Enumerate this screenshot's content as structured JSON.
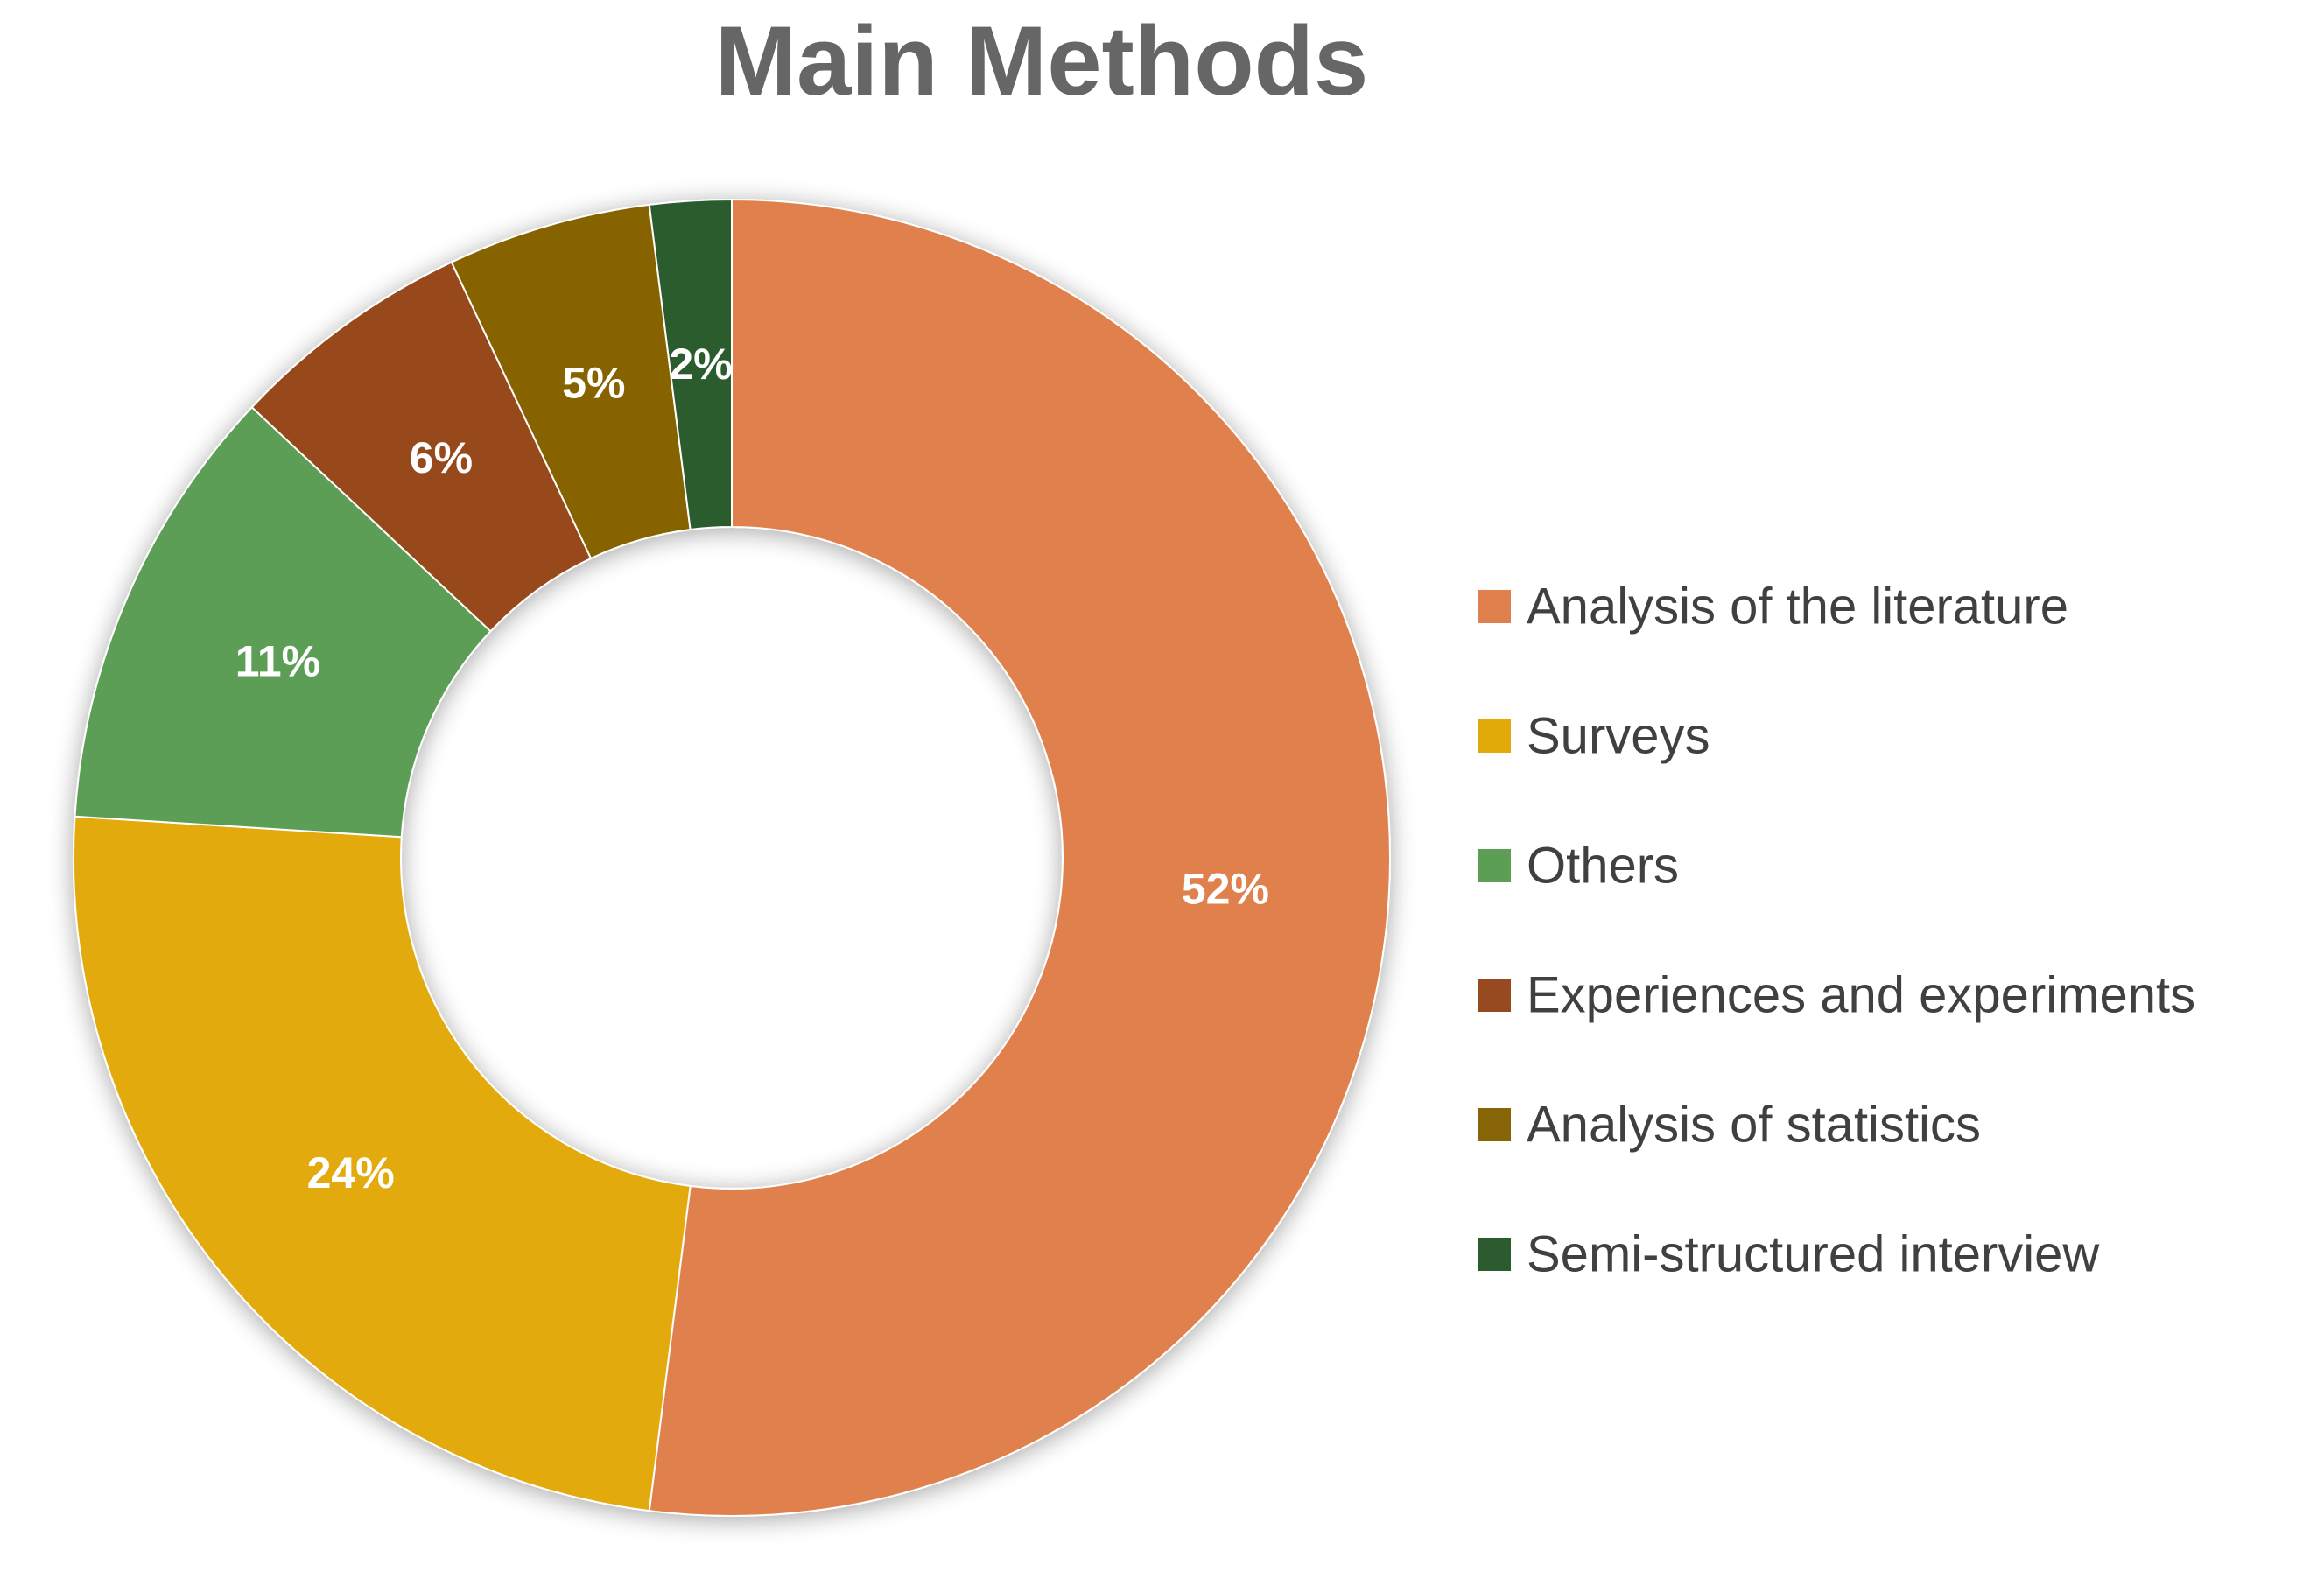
{
  "chart_data": {
    "type": "pie",
    "variant": "doughnut",
    "title": "Main Methods",
    "legend_position": "right",
    "label_format": "percent",
    "start_angle": "12 o'clock",
    "direction": "clockwise",
    "slices": [
      {
        "label": "Analysis of the literature",
        "value": 52,
        "display": "52%",
        "color": "#E0804D"
      },
      {
        "label": "Surveys",
        "value": 24,
        "display": "24%",
        "color": "#E2AA08"
      },
      {
        "label": "Others",
        "value": 11,
        "display": "11%",
        "color": "#5B9E54"
      },
      {
        "label": "Experiences and  experiments",
        "value": 6,
        "display": "6%",
        "color": "#974A1F"
      },
      {
        "label": "Analysis of statistics",
        "value": 5,
        "display": "5%",
        "color": "#876405"
      },
      {
        "label": "Semi-structured interview",
        "value": 2,
        "display": "2%",
        "color": "#2C5B2F"
      }
    ]
  }
}
